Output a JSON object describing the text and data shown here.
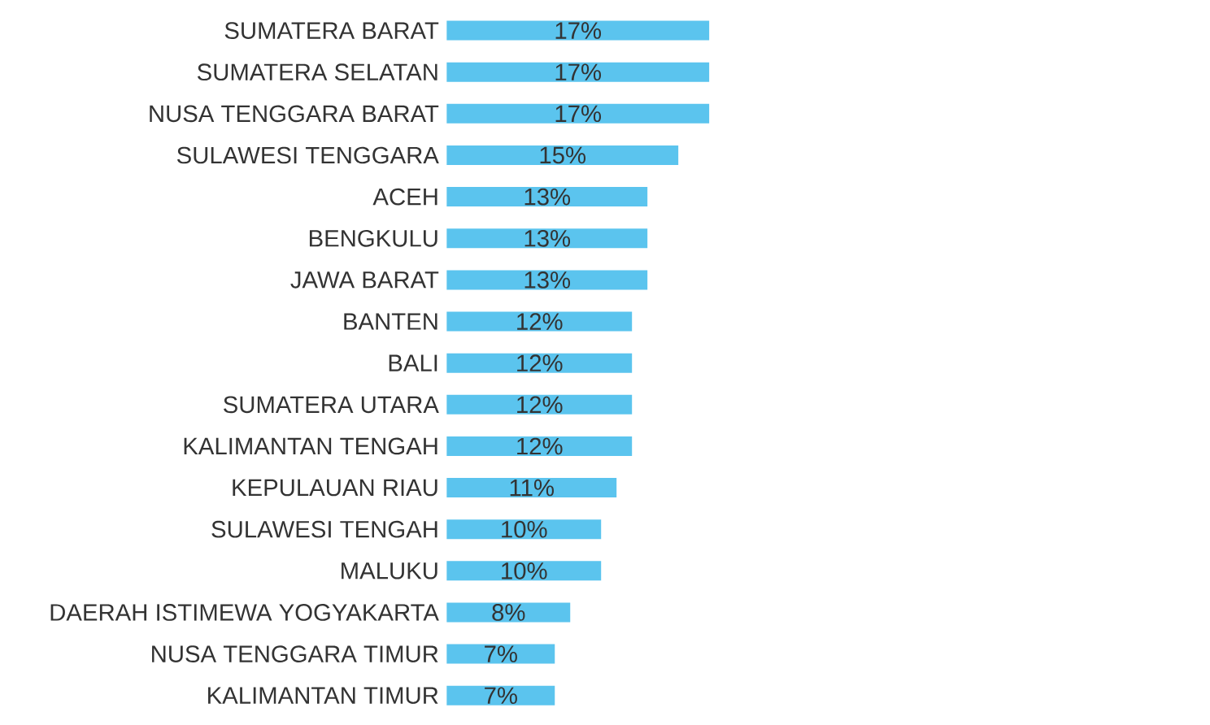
{
  "chart_data": {
    "type": "bar",
    "orientation": "horizontal",
    "color": "#5bc4ee",
    "categories": [
      "SUMATERA BARAT",
      "SUMATERA SELATAN",
      "NUSA TENGGARA BARAT",
      "SULAWESI TENGGARA",
      "ACEH",
      "BENGKULU",
      "JAWA BARAT",
      "BANTEN",
      "BALI",
      "SUMATERA UTARA",
      "KALIMANTAN TENGAH",
      "KEPULAUAN RIAU",
      "SULAWESI TENGAH",
      "MALUKU",
      "DAERAH ISTIMEWA YOGYAKARTA",
      "NUSA TENGGARA TIMUR",
      "KALIMANTAN TIMUR"
    ],
    "values": [
      17,
      17,
      17,
      15,
      13,
      13,
      13,
      12,
      12,
      12,
      12,
      11,
      10,
      10,
      8,
      7,
      7
    ],
    "value_labels": [
      "17%",
      "17%",
      "17%",
      "15%",
      "13%",
      "13%",
      "13%",
      "12%",
      "12%",
      "12%",
      "12%",
      "11%",
      "10%",
      "10%",
      "8%",
      "7%",
      "7%"
    ]
  }
}
